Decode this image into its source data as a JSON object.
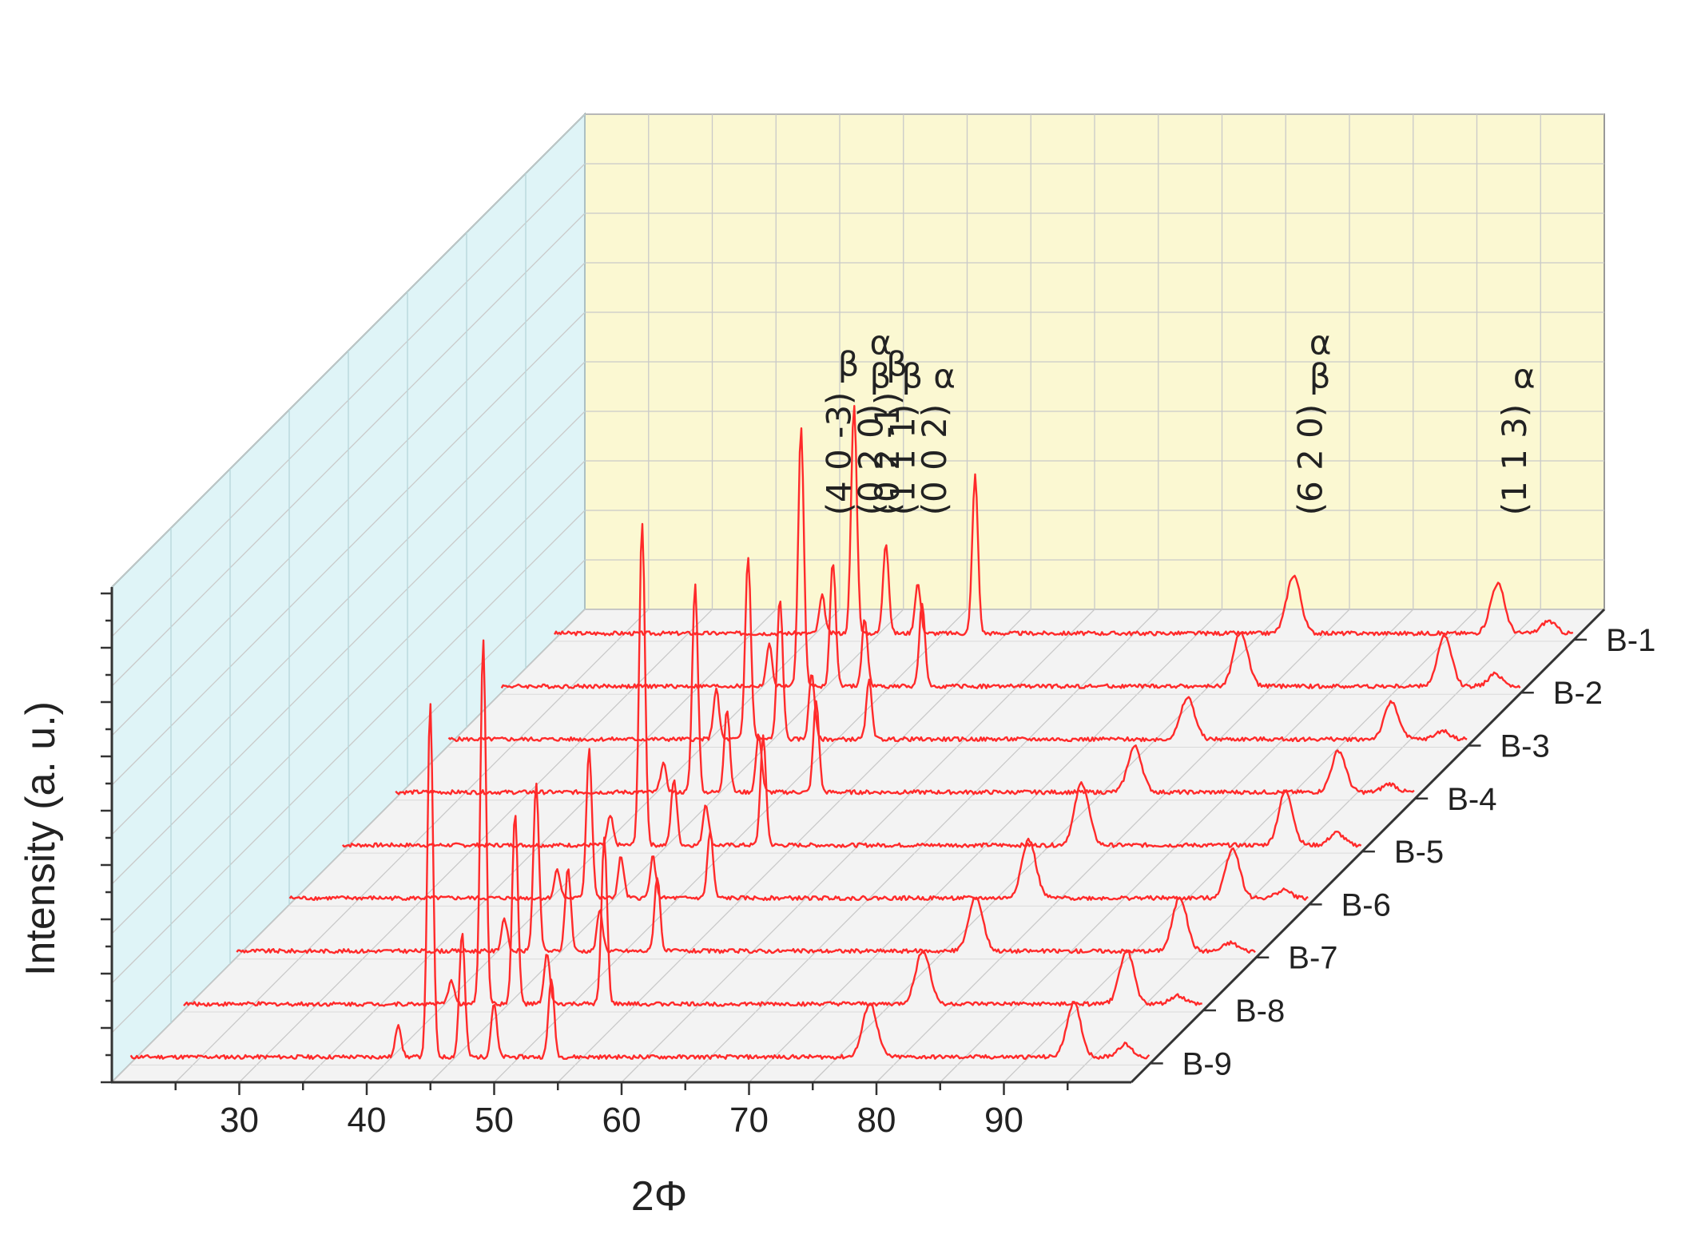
{
  "chart_data": {
    "type": "line",
    "title": "",
    "xlabel": "2Φ",
    "ylabel": "Intensity (a. u.)",
    "xlim": [
      20,
      100
    ],
    "x_ticks": [
      30,
      40,
      50,
      60,
      70,
      80,
      90
    ],
    "grid": true,
    "series": [
      {
        "name": "B-1",
        "peaks": [
          {
            "x": 41,
            "h": 0.09
          },
          {
            "x": 43.5,
            "h": 0.55
          },
          {
            "x": 46,
            "h": 0.22
          },
          {
            "x": 48.5,
            "h": 0.12
          },
          {
            "x": 53,
            "h": 0.38
          },
          {
            "x": 78,
            "h": 0.14
          },
          {
            "x": 94,
            "h": 0.12
          },
          {
            "x": 98,
            "h": 0.03
          }
        ]
      },
      {
        "name": "B-2",
        "peaks": [
          {
            "x": 41,
            "h": 0.1
          },
          {
            "x": 43.5,
            "h": 0.62
          },
          {
            "x": 46,
            "h": 0.3
          },
          {
            "x": 48.5,
            "h": 0.16
          },
          {
            "x": 53,
            "h": 0.2
          },
          {
            "x": 78,
            "h": 0.13
          },
          {
            "x": 94,
            "h": 0.12
          },
          {
            "x": 98,
            "h": 0.03
          }
        ]
      },
      {
        "name": "B-3",
        "peaks": [
          {
            "x": 41,
            "h": 0.12
          },
          {
            "x": 43.5,
            "h": 0.44
          },
          {
            "x": 46,
            "h": 0.34
          },
          {
            "x": 48.5,
            "h": 0.16
          },
          {
            "x": 53,
            "h": 0.14
          },
          {
            "x": 78,
            "h": 0.1
          },
          {
            "x": 94,
            "h": 0.09
          },
          {
            "x": 98,
            "h": 0.02
          }
        ]
      },
      {
        "name": "B-4",
        "peaks": [
          {
            "x": 41,
            "h": 0.07
          },
          {
            "x": 43.5,
            "h": 0.5
          },
          {
            "x": 46,
            "h": 0.2
          },
          {
            "x": 48.5,
            "h": 0.14
          },
          {
            "x": 53,
            "h": 0.22
          },
          {
            "x": 78,
            "h": 0.11
          },
          {
            "x": 94,
            "h": 0.1
          },
          {
            "x": 98,
            "h": 0.02
          }
        ]
      },
      {
        "name": "B-5",
        "peaks": [
          {
            "x": 41,
            "h": 0.07
          },
          {
            "x": 43.5,
            "h": 0.78
          },
          {
            "x": 46,
            "h": 0.16
          },
          {
            "x": 48.5,
            "h": 0.1
          },
          {
            "x": 53,
            "h": 0.26
          },
          {
            "x": 78,
            "h": 0.15
          },
          {
            "x": 94,
            "h": 0.13
          },
          {
            "x": 98,
            "h": 0.03
          }
        ]
      },
      {
        "name": "B-6",
        "peaks": [
          {
            "x": 41,
            "h": 0.07
          },
          {
            "x": 43.5,
            "h": 0.36
          },
          {
            "x": 46,
            "h": 0.1
          },
          {
            "x": 48.5,
            "h": 0.1
          },
          {
            "x": 53,
            "h": 0.16
          },
          {
            "x": 78,
            "h": 0.14
          },
          {
            "x": 94,
            "h": 0.12
          },
          {
            "x": 98,
            "h": 0.02
          }
        ]
      },
      {
        "name": "B-7",
        "peaks": [
          {
            "x": 41,
            "h": 0.08
          },
          {
            "x": 43.5,
            "h": 0.4
          },
          {
            "x": 46,
            "h": 0.2
          },
          {
            "x": 48.5,
            "h": 0.1
          },
          {
            "x": 53,
            "h": 0.18
          },
          {
            "x": 78,
            "h": 0.13
          },
          {
            "x": 94,
            "h": 0.13
          },
          {
            "x": 98,
            "h": 0.02
          }
        ]
      },
      {
        "name": "B-8",
        "peaks": [
          {
            "x": 41,
            "h": 0.06
          },
          {
            "x": 43.5,
            "h": 0.88
          },
          {
            "x": 46,
            "h": 0.46
          },
          {
            "x": 48.5,
            "h": 0.12
          },
          {
            "x": 53,
            "h": 0.4
          },
          {
            "x": 78,
            "h": 0.13
          },
          {
            "x": 94,
            "h": 0.13
          },
          {
            "x": 98,
            "h": 0.02
          }
        ]
      },
      {
        "name": "B-9",
        "peaks": [
          {
            "x": 41,
            "h": 0.08
          },
          {
            "x": 43.5,
            "h": 0.85
          },
          {
            "x": 46,
            "h": 0.3
          },
          {
            "x": 48.5,
            "h": 0.13
          },
          {
            "x": 53,
            "h": 0.19
          },
          {
            "x": 78,
            "h": 0.13
          },
          {
            "x": 94,
            "h": 0.13
          },
          {
            "x": 98,
            "h": 0.03
          }
        ]
      }
    ],
    "annotations": [
      {
        "label": "β",
        "miller": "(4 0 -3)",
        "x": 41,
        "phase2": ""
      },
      {
        "label": "β",
        "miller": "(0 2 0)",
        "x": 43.5,
        "phase2": "α"
      },
      {
        "label": "β",
        "miller": "(0 2 -1)",
        "x": 44.8,
        "phase2": ""
      },
      {
        "label": "β",
        "miller": "(1 1 1)",
        "x": 46,
        "phase2": ""
      },
      {
        "label": "α",
        "miller": "(0 0 2)",
        "x": 48.5,
        "phase2": ""
      },
      {
        "label": "β",
        "miller": "(6 2 0)",
        "x": 78,
        "phase2": "α"
      },
      {
        "label": "α",
        "miller": "(1 1 3)",
        "x": 94,
        "phase2": ""
      }
    ],
    "colors": {
      "curve": "#ff2a2a",
      "left_wall": "#dff4f7",
      "back_wall": "#fbf8d2",
      "floor": "#f3f3f3",
      "grid": "#c9c9c9"
    }
  }
}
